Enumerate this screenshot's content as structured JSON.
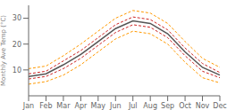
{
  "chart_data": {
    "type": "line",
    "ylabel": "Monthly Ave Temp (°C)",
    "categories": [
      "Jan",
      "Feb",
      "Mar",
      "Apr",
      "May",
      "Jun",
      "Jul",
      "Aug",
      "Sep",
      "Oct",
      "Nov",
      "Dec"
    ],
    "series": [
      {
        "color": "#ff9900",
        "line_style": "dashed",
        "values": [
          4.5,
          5.5,
          8,
          12,
          17,
          22,
          25,
          24,
          20,
          13,
          7,
          5
        ]
      },
      {
        "color": "#ff9900",
        "line_style": "dashed",
        "values": [
          10.5,
          11.5,
          15.5,
          20,
          25,
          30,
          33,
          32,
          28,
          21,
          14.5,
          11
        ]
      },
      {
        "color": "#cc2222",
        "line_style": "dashed",
        "values": [
          6.5,
          7.5,
          10.5,
          14.5,
          19.5,
          24.5,
          27.5,
          26.5,
          22.5,
          15.5,
          9.5,
          7
        ]
      },
      {
        "color": "#cc2222",
        "line_style": "dashed",
        "values": [
          8.5,
          9.5,
          13.5,
          17.5,
          22.5,
          27.5,
          30.5,
          29.5,
          25.5,
          18.5,
          12.5,
          9
        ]
      },
      {
        "color": "#555555",
        "line_style": "solid",
        "values": [
          7.5,
          8.5,
          12,
          16,
          21,
          26,
          29,
          28,
          24,
          17,
          11,
          8
        ]
      }
    ],
    "ylim": [
      0,
      35
    ],
    "yticks": [
      10,
      20,
      30
    ],
    "grid": false
  }
}
